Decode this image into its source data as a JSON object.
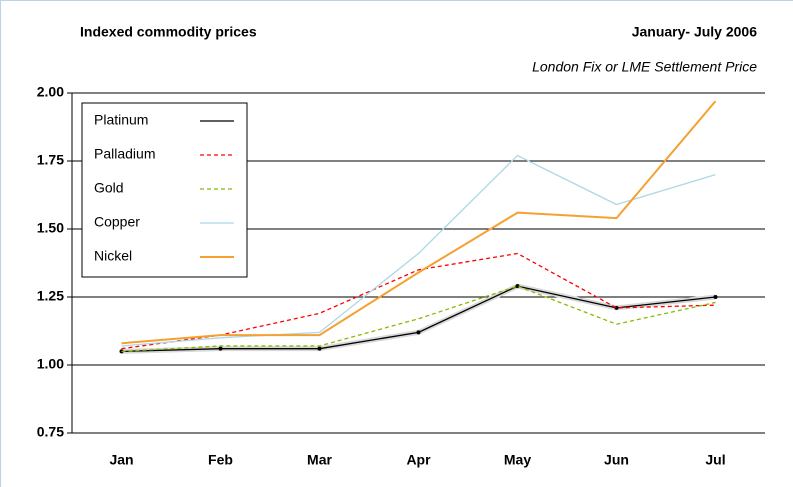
{
  "chart_data": {
    "type": "line",
    "title": "Indexed commodity prices",
    "period": "January- July 2006",
    "subtitle": "London Fix or LME Settlement Price",
    "categories": [
      "Jan",
      "Feb",
      "Mar",
      "Apr",
      "May",
      "Jun",
      "Jul"
    ],
    "series": [
      {
        "name": "Platinum",
        "color": "#000000",
        "dash": "",
        "values": [
          1.05,
          1.06,
          1.06,
          1.12,
          1.29,
          1.21,
          1.25
        ]
      },
      {
        "name": "Palladium",
        "color": "#ff0000",
        "dash": "4 3",
        "values": [
          1.06,
          1.11,
          1.19,
          1.35,
          1.41,
          1.21,
          1.22
        ]
      },
      {
        "name": "Gold",
        "color": "#88bb00",
        "dash": "4 3",
        "values": [
          1.05,
          1.07,
          1.07,
          1.17,
          1.29,
          1.15,
          1.23
        ]
      },
      {
        "name": "Copper",
        "color": "#add8e6",
        "dash": "",
        "values": [
          1.07,
          1.1,
          1.12,
          1.41,
          1.77,
          1.59,
          1.7
        ]
      },
      {
        "name": "Nickel",
        "color": "#f5a030",
        "dash": "",
        "values": [
          1.08,
          1.11,
          1.11,
          1.34,
          1.56,
          1.54,
          1.97
        ]
      }
    ],
    "ylim": [
      0.75,
      2.0
    ],
    "yticks": [
      {
        "value": 0.75,
        "label": "0.75"
      },
      {
        "value": 1.0,
        "label": "1.00"
      },
      {
        "value": 1.25,
        "label": "1.25"
      },
      {
        "value": 1.5,
        "label": "1.50"
      },
      {
        "value": 1.75,
        "label": "1.75"
      },
      {
        "value": 2.0,
        "label": "2.00"
      }
    ],
    "grid": true,
    "legend": "top-left"
  }
}
